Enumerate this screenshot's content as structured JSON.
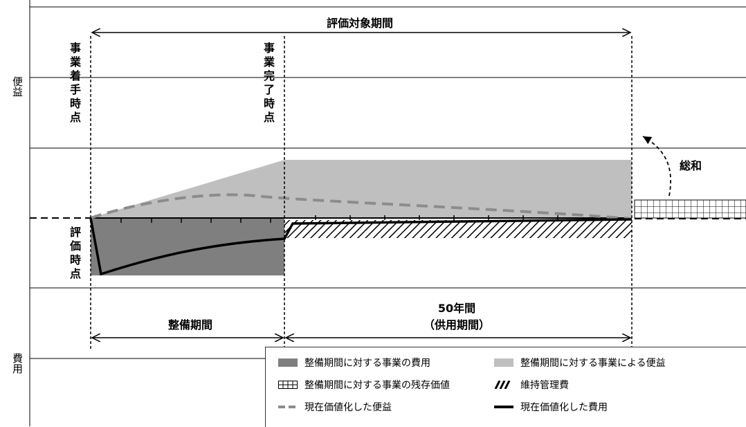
{
  "axis": {
    "benefit": "便益",
    "cost": "費用"
  },
  "labels": {
    "evaluation_period": "評価対象期間",
    "project_start": "事業着手時点",
    "project_complete": "事業完了時点",
    "evaluation_point": "評価時点",
    "sum": "総和",
    "maintenance_period": "整備期間",
    "fifty_years": "50年間",
    "service_period": "（供用期間）"
  },
  "legend": [
    {
      "label": "整備期間に対する事業の費用",
      "style": "dark-fill",
      "color": "#7f7f7f"
    },
    {
      "label": "整備期間に対する事業による便益",
      "style": "light-fill",
      "color": "#bfbfbf"
    },
    {
      "label": "整備期間に対する事業の残存価値",
      "style": "grid-fill"
    },
    {
      "label": "維持管理費",
      "style": "hatch-fill"
    },
    {
      "label": "現在価値化した便益",
      "style": "dashed-line",
      "color": "#8c8c8c"
    },
    {
      "label": "現在価値化した費用",
      "style": "solid-line",
      "color": "#000000"
    }
  ]
}
